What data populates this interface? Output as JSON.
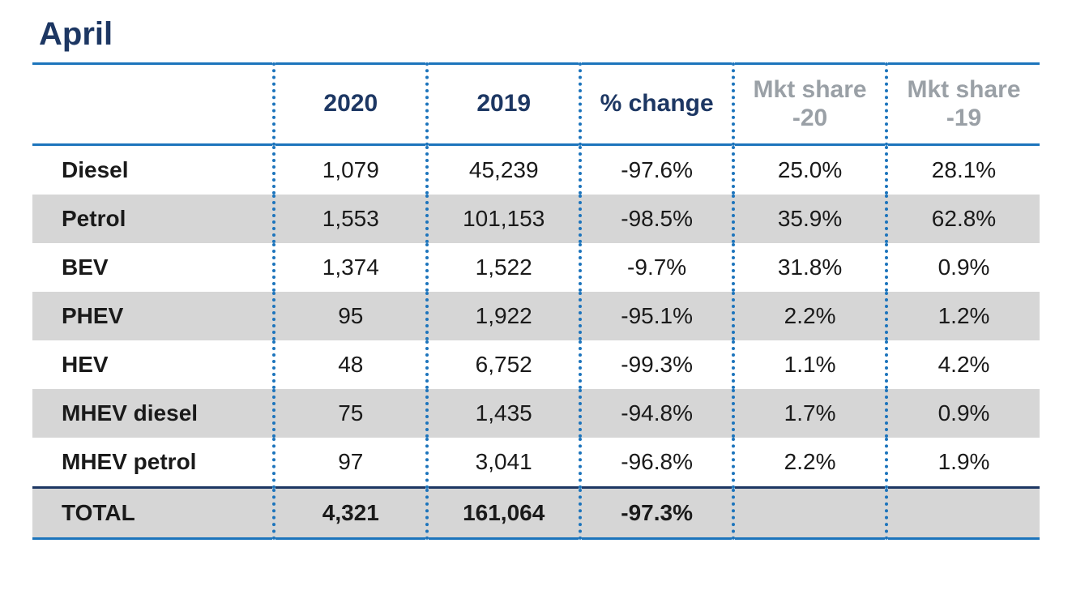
{
  "title": "April",
  "colors": {
    "title_text": "#1d3763",
    "header_text_primary": "#1d3763",
    "header_text_muted": "#9aa0a6",
    "rule_blue": "#1c74bc",
    "rule_dark": "#1d3763",
    "row_alt_bg": "#d6d6d6",
    "body_text": "#1a1a1a",
    "dot_border": "#1c74bc",
    "background": "#ffffff"
  },
  "font": {
    "title_size_pt": 30,
    "header_size_pt": 22,
    "body_size_pt": 21,
    "family": "sans-serif"
  },
  "columns": [
    {
      "key": "label",
      "header": "",
      "muted": false
    },
    {
      "key": "y2020",
      "header": "2020",
      "muted": false
    },
    {
      "key": "y2019",
      "header": "2019",
      "muted": false
    },
    {
      "key": "pct_change",
      "header": "% change",
      "muted": false
    },
    {
      "key": "mkt20",
      "header": "Mkt share -20",
      "muted": true
    },
    {
      "key": "mkt19",
      "header": "Mkt share -19",
      "muted": true
    }
  ],
  "rows": [
    {
      "label": "Diesel",
      "y2020": "1,079",
      "y2019": "45,239",
      "pct_change": "-97.6%",
      "mkt20": "25.0%",
      "mkt19": "28.1%"
    },
    {
      "label": "Petrol",
      "y2020": "1,553",
      "y2019": "101,153",
      "pct_change": "-98.5%",
      "mkt20": "35.9%",
      "mkt19": "62.8%"
    },
    {
      "label": "BEV",
      "y2020": "1,374",
      "y2019": "1,522",
      "pct_change": "-9.7%",
      "mkt20": "31.8%",
      "mkt19": "0.9%"
    },
    {
      "label": "PHEV",
      "y2020": "95",
      "y2019": "1,922",
      "pct_change": "-95.1%",
      "mkt20": "2.2%",
      "mkt19": "1.2%"
    },
    {
      "label": "HEV",
      "y2020": "48",
      "y2019": "6,752",
      "pct_change": "-99.3%",
      "mkt20": "1.1%",
      "mkt19": "4.2%"
    },
    {
      "label": "MHEV diesel",
      "y2020": "75",
      "y2019": "1,435",
      "pct_change": "-94.8%",
      "mkt20": "1.7%",
      "mkt19": "0.9%"
    },
    {
      "label": "MHEV petrol",
      "y2020": "97",
      "y2019": "3,041",
      "pct_change": "-96.8%",
      "mkt20": "2.2%",
      "mkt19": "1.9%"
    }
  ],
  "total": {
    "label": "TOTAL",
    "y2020": "4,321",
    "y2019": "161,064",
    "pct_change": "-97.3%",
    "mkt20": "",
    "mkt19": ""
  }
}
